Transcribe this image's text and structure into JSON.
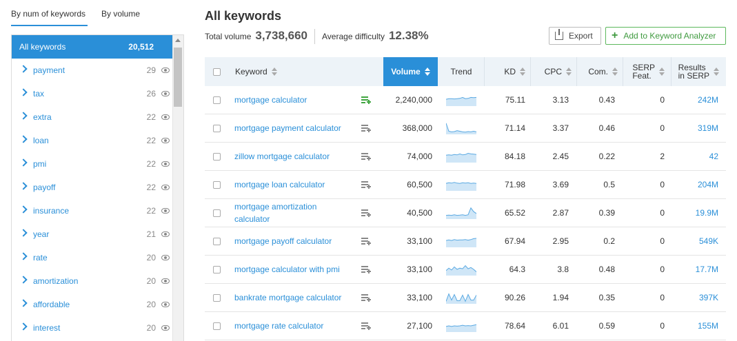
{
  "tabs": [
    {
      "label": "By num of keywords",
      "active": true
    },
    {
      "label": "By volume",
      "active": false
    }
  ],
  "sidebar": {
    "active": {
      "label": "All keywords",
      "count": "20,512"
    },
    "items": [
      {
        "label": "payment",
        "count": "29"
      },
      {
        "label": "tax",
        "count": "26"
      },
      {
        "label": "extra",
        "count": "22"
      },
      {
        "label": "loan",
        "count": "22"
      },
      {
        "label": "pmi",
        "count": "22"
      },
      {
        "label": "payoff",
        "count": "22"
      },
      {
        "label": "insurance",
        "count": "22"
      },
      {
        "label": "year",
        "count": "21"
      },
      {
        "label": "rate",
        "count": "20"
      },
      {
        "label": "amortization",
        "count": "20"
      },
      {
        "label": "affordable",
        "count": "20"
      },
      {
        "label": "interest",
        "count": "20"
      }
    ]
  },
  "header": {
    "title": "All keywords",
    "total_label": "Total volume",
    "total_value": "3,738,660",
    "difficulty_label": "Average difficulty",
    "difficulty_value": "12.38%",
    "export_label": "Export",
    "add_label": "Add to Keyword Analyzer"
  },
  "columns": {
    "keyword": "Keyword",
    "volume": "Volume",
    "trend": "Trend",
    "kd": "KD",
    "cpc": "CPC",
    "com": "Com.",
    "serp_line1": "SERP",
    "serp_line2": "Feat.",
    "results_line1": "Results",
    "results_line2": "in SERP"
  },
  "colors": {
    "accent": "#2a8fd8",
    "trend_fill": "#cfe6f7",
    "trend_line": "#5aa9e2",
    "added": "#3fa53f"
  },
  "rows": [
    {
      "keyword": "mortgage calculator",
      "added": true,
      "volume": "2,240,000",
      "kd": "75.11",
      "cpc": "3.13",
      "com": "0.43",
      "serp": "0",
      "results": "242M",
      "trend": [
        0.55,
        0.6,
        0.6,
        0.58,
        0.6,
        0.62,
        0.7,
        0.6,
        0.62,
        0.7,
        0.68,
        0.7
      ]
    },
    {
      "keyword": "mortgage payment calculator",
      "added": false,
      "volume": "368,000",
      "kd": "71.14",
      "cpc": "3.37",
      "com": "0.46",
      "serp": "0",
      "results": "319M",
      "trend": [
        0.9,
        0.25,
        0.2,
        0.22,
        0.3,
        0.25,
        0.2,
        0.18,
        0.22,
        0.2,
        0.25,
        0.2
      ]
    },
    {
      "keyword": "zillow mortgage calculator",
      "added": false,
      "volume": "74,000",
      "kd": "84.18",
      "cpc": "2.45",
      "com": "0.22",
      "serp": "2",
      "results": "42",
      "trend": [
        0.6,
        0.62,
        0.6,
        0.65,
        0.62,
        0.7,
        0.62,
        0.65,
        0.75,
        0.7,
        0.68,
        0.65
      ]
    },
    {
      "keyword": "mortgage loan calculator",
      "added": false,
      "volume": "60,500",
      "kd": "71.98",
      "cpc": "3.69",
      "com": "0.5",
      "serp": "0",
      "results": "204M",
      "trend": [
        0.6,
        0.65,
        0.62,
        0.68,
        0.62,
        0.6,
        0.65,
        0.62,
        0.65,
        0.6,
        0.62,
        0.6
      ]
    },
    {
      "keyword": "mortgage amortization calculator",
      "added": false,
      "volume": "40,500",
      "kd": "65.52",
      "cpc": "2.87",
      "com": "0.39",
      "serp": "0",
      "results": "19.9M",
      "trend": [
        0.3,
        0.32,
        0.3,
        0.35,
        0.3,
        0.32,
        0.35,
        0.3,
        0.35,
        0.9,
        0.6,
        0.45
      ]
    },
    {
      "keyword": "mortgage payoff calculator",
      "added": false,
      "volume": "33,100",
      "kd": "67.94",
      "cpc": "2.95",
      "com": "0.2",
      "serp": "0",
      "results": "549K",
      "trend": [
        0.55,
        0.6,
        0.55,
        0.62,
        0.58,
        0.6,
        0.6,
        0.62,
        0.58,
        0.62,
        0.7,
        0.72
      ]
    },
    {
      "keyword": "mortgage calculator with pmi",
      "added": false,
      "volume": "33,100",
      "kd": "64.3",
      "cpc": "3.8",
      "com": "0.48",
      "serp": "0",
      "results": "17.7M",
      "trend": [
        0.4,
        0.6,
        0.45,
        0.7,
        0.5,
        0.6,
        0.55,
        0.8,
        0.55,
        0.65,
        0.5,
        0.3
      ]
    },
    {
      "keyword": "bankrate mortgage calculator",
      "added": false,
      "volume": "33,100",
      "kd": "90.26",
      "cpc": "1.94",
      "com": "0.35",
      "serp": "0",
      "results": "397K",
      "trend": [
        0.2,
        0.8,
        0.3,
        0.75,
        0.25,
        0.25,
        0.7,
        0.2,
        0.75,
        0.3,
        0.3,
        0.7
      ]
    },
    {
      "keyword": "mortgage rate calculator",
      "added": false,
      "volume": "27,100",
      "kd": "78.64",
      "cpc": "6.01",
      "com": "0.59",
      "serp": "0",
      "results": "155M",
      "trend": [
        0.45,
        0.5,
        0.45,
        0.5,
        0.48,
        0.5,
        0.55,
        0.5,
        0.52,
        0.5,
        0.55,
        0.6
      ]
    }
  ]
}
